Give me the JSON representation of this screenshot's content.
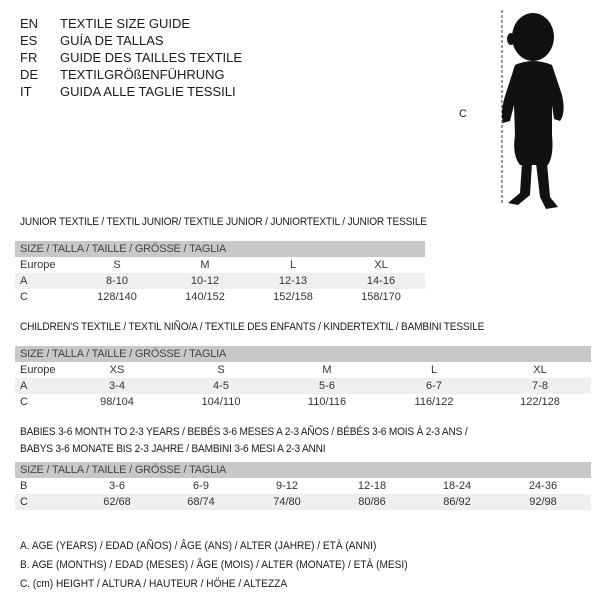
{
  "languages": [
    {
      "code": "EN",
      "title": "TEXTILE SIZE GUIDE"
    },
    {
      "code": "ES",
      "title": "GUÍA DE TALLAS"
    },
    {
      "code": "FR",
      "title": "GUIDE DES TAILLES TEXTILE"
    },
    {
      "code": "DE",
      "title": "TEXTILGRÖßENFÜHRUNG"
    },
    {
      "code": "IT",
      "title": "GUIDA ALLE TAGLIE TESSILI"
    }
  ],
  "figure": {
    "measure_label": "C"
  },
  "junior": {
    "title": "JUNIOR TEXTILE / TEXTIL JUNIOR/ TEXTILE JUNIOR / JUNIORTEXTIL / JUNIOR TESSILE",
    "header": "SIZE / TALLA / TAILLE / GRÖSSE / TAGLIA",
    "rows": [
      {
        "label": "Europe",
        "cells": [
          "S",
          "M",
          "L",
          "XL"
        ]
      },
      {
        "label": "A",
        "cells": [
          "8-10",
          "10-12",
          "12-13",
          "14-16"
        ]
      },
      {
        "label": "C",
        "cells": [
          "128/140",
          "140/152",
          "152/158",
          "158/170"
        ]
      }
    ]
  },
  "children": {
    "title": "CHILDREN'S TEXTILE / TEXTIL NIÑO/A / TEXTILE DES ENFANTS / KINDERTEXTIL / BAMBINI TESSILE",
    "header": "SIZE / TALLA / TAILLE / GRÖSSE / TAGLIA",
    "rows": [
      {
        "label": "Europe",
        "cells": [
          "XS",
          "S",
          "M",
          "L",
          "XL"
        ]
      },
      {
        "label": "A",
        "cells": [
          "3-4",
          "4-5",
          "5-6",
          "6-7",
          "7-8"
        ]
      },
      {
        "label": "C",
        "cells": [
          "98/104",
          "104/110",
          "110/116",
          "116/122",
          "122/128"
        ]
      }
    ]
  },
  "babies": {
    "title_line1": "BABIES 3-6 MONTH TO 2-3 YEARS / BEBÉS 3-6 MESES A 2-3 AÑOS / BÉBÉS 3-6 MOIS À 2-3 ANS /",
    "title_line2": "BABYS 3-6 MONATE BIS 2-3 JAHRE / BAMBINI 3-6 MESI A 2-3 ANNI",
    "header": "SIZE / TALLA / TAILLE / GRÖSSE / TAGLIA",
    "rows": [
      {
        "label": "B",
        "cells": [
          "3-6",
          "6-9",
          "9-12",
          "12-18",
          "18-24",
          "24-36"
        ]
      },
      {
        "label": "C",
        "cells": [
          "62/68",
          "68/74",
          "74/80",
          "80/86",
          "86/92",
          "92/98"
        ]
      }
    ]
  },
  "legend": [
    "A. AGE (YEARS) / EDAD (AÑOS) / ÂGE (ANS) / ALTER (JAHRE) / ETÀ (ANNI)",
    "B. AGE (MONTHS) / EDAD (MESES) / ÂGE (MOIS) / ALTER (MONATE) / ETÀ (MESI)",
    "C. (cm) HEIGHT / ALTURA / HAUTEUR / HÖHE / ALTEZZA"
  ]
}
